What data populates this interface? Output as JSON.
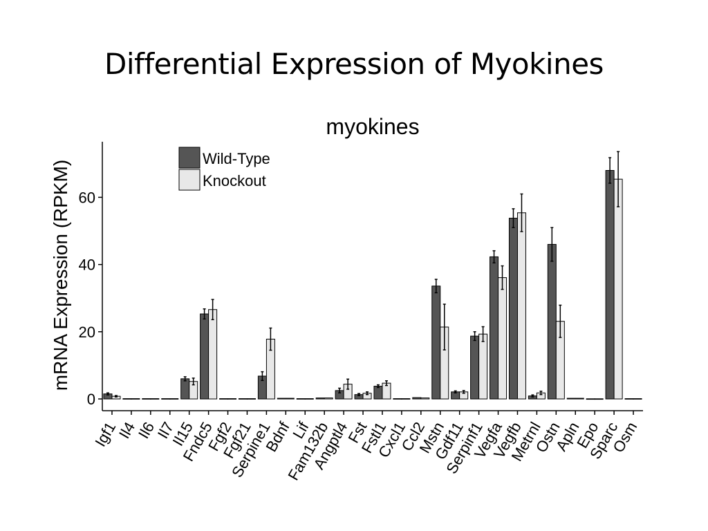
{
  "slide": {
    "title": "Differential Expression of Myokines"
  },
  "chart_data": {
    "type": "bar",
    "title": "myokines",
    "xlabel": "",
    "ylabel": "mRNA Expression (RPKM)",
    "ylim": [
      0,
      75
    ],
    "yticks": [
      0,
      20,
      40,
      60
    ],
    "grid": false,
    "legend_position": "top-left",
    "colors": {
      "Wild-Type": "#555555",
      "Knockout": "#e8e8e8"
    },
    "categories": [
      "Igf1",
      "Il4",
      "Il6",
      "Il7",
      "Il15",
      "Fndc5",
      "Fgf2",
      "Fgf21",
      "Serpine1",
      "Bdnf",
      "Lif",
      "Fam132b",
      "Angptl4",
      "Fst",
      "Fstl1",
      "Cxcl1",
      "Ccl2",
      "Mstn",
      "Gdf11",
      "Serpinf1",
      "Vegfa",
      "Vegfb",
      "Metrnl",
      "Ostn",
      "Apln",
      "Epo",
      "Sparc",
      "Osm"
    ],
    "series": [
      {
        "name": "Wild-Type",
        "values": [
          1.5,
          0.1,
          0.1,
          0.1,
          6.0,
          25.3,
          0.1,
          0.1,
          6.8,
          0.2,
          0.1,
          0.3,
          2.5,
          1.3,
          3.8,
          0.1,
          0.4,
          33.6,
          2.1,
          18.7,
          42.3,
          53.8,
          0.9,
          46.0,
          0.2,
          0.05,
          68.0,
          0.1
        ],
        "errors": [
          0.3,
          0.05,
          0.05,
          0.05,
          0.6,
          1.5,
          0.05,
          0.05,
          1.3,
          0.05,
          0.05,
          0.1,
          0.7,
          0.3,
          0.4,
          0.05,
          0.1,
          2.0,
          0.3,
          1.3,
          1.8,
          2.8,
          0.3,
          5.0,
          0.1,
          0.02,
          3.8,
          0.05
        ]
      },
      {
        "name": "Knockout",
        "values": [
          0.8,
          0.1,
          0.1,
          0.1,
          5.2,
          26.6,
          0.1,
          0.1,
          17.8,
          0.2,
          0.1,
          0.3,
          4.4,
          1.7,
          4.7,
          0.1,
          0.3,
          21.4,
          2.1,
          19.3,
          36.1,
          55.4,
          1.8,
          23.1,
          0.2,
          0.05,
          65.4,
          0.1
        ],
        "errors": [
          0.2,
          0.05,
          0.05,
          0.05,
          1.0,
          3.0,
          0.05,
          0.05,
          3.3,
          0.05,
          0.05,
          0.1,
          1.5,
          0.4,
          0.7,
          0.05,
          0.1,
          6.8,
          0.4,
          2.2,
          3.5,
          5.6,
          0.5,
          4.8,
          0.1,
          0.02,
          8.2,
          0.05
        ]
      }
    ]
  }
}
